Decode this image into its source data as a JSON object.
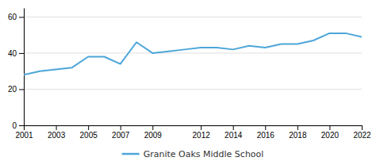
{
  "chart_data": {
    "type": "line",
    "x": [
      2001,
      2002,
      2003,
      2004,
      2005,
      2006,
      2007,
      2008,
      2009,
      2010,
      2011,
      2012,
      2013,
      2014,
      2015,
      2016,
      2017,
      2018,
      2019,
      2020,
      2021,
      2022
    ],
    "series": [
      {
        "name": "Granite Oaks Middle School",
        "color": "#4da6d9",
        "values": [
          28,
          30,
          31,
          32,
          38,
          38,
          34,
          46,
          40,
          41,
          42,
          43,
          43,
          42,
          44,
          43,
          45,
          45,
          47,
          51,
          51,
          49
        ]
      }
    ],
    "xlim": [
      2001,
      2022
    ],
    "xticks": [
      2001,
      2003,
      2005,
      2007,
      2009,
      2012,
      2014,
      2016,
      2018,
      2020,
      2022
    ],
    "ylim": [
      0,
      65
    ],
    "yticks": [
      0,
      20,
      40,
      60
    ],
    "grid": "y",
    "legend": "bottom"
  }
}
